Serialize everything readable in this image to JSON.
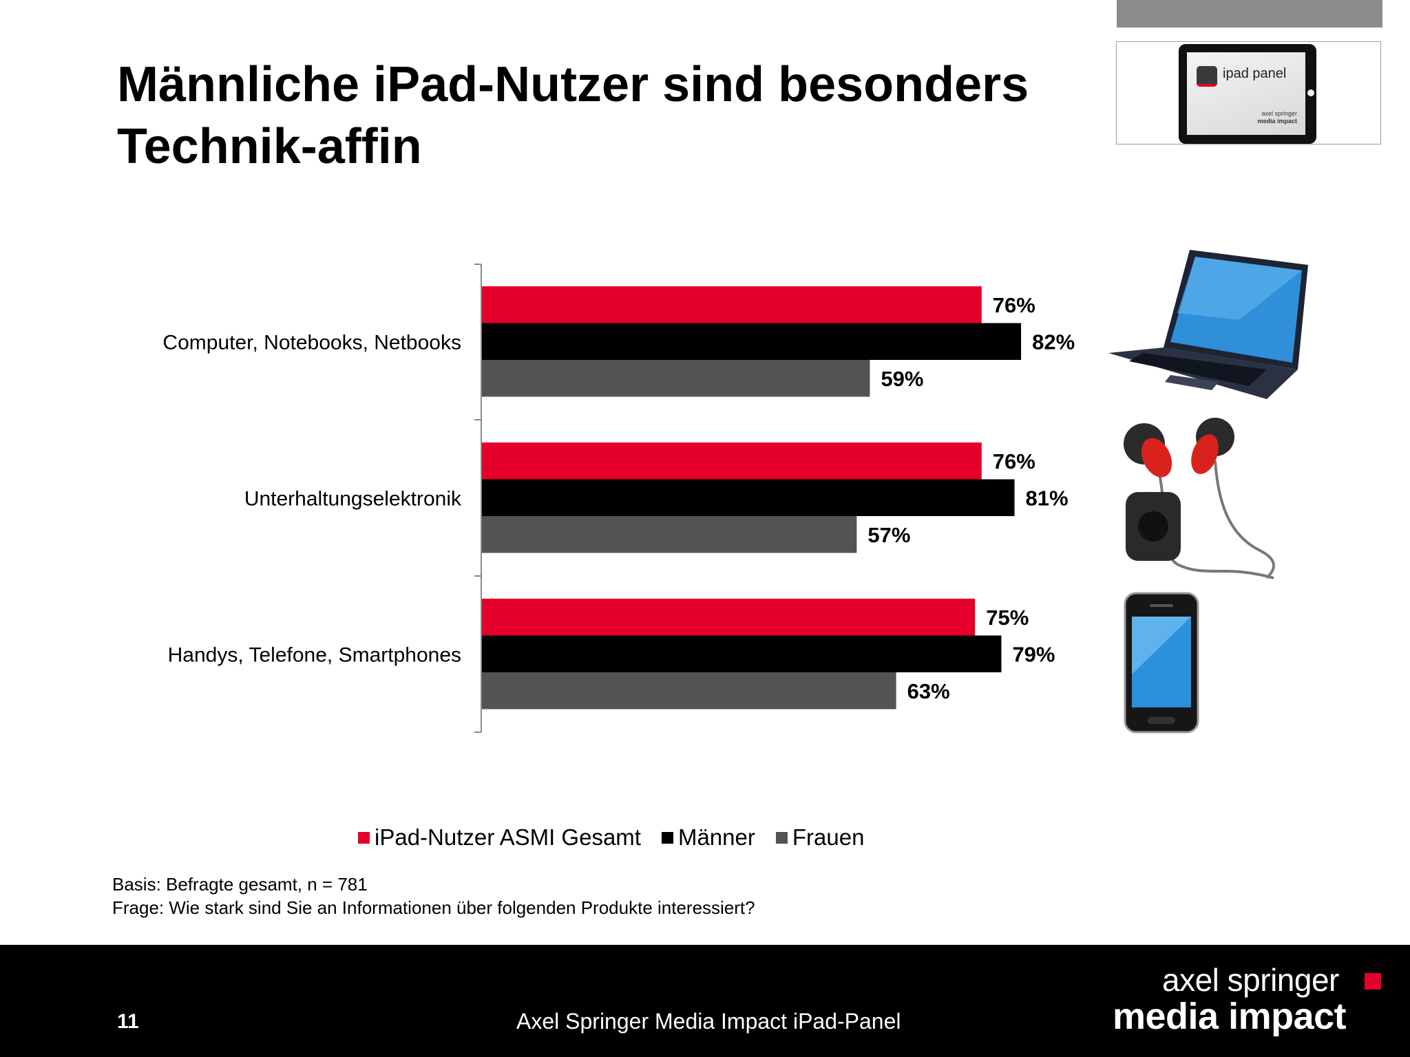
{
  "title": "Männliche iPad-Nutzer sind besonders Technik-affin",
  "logo": {
    "label": "ipad panel",
    "brand_top": "axel springer",
    "brand_bottom": "media impact"
  },
  "chart_data": {
    "type": "bar",
    "orientation": "horizontal",
    "categories": [
      "Computer, Notebooks, Netbooks",
      "Unterhaltungselektronik",
      "Handys, Telefone, Smartphones"
    ],
    "series": [
      {
        "name": "iPad-Nutzer ASMI Gesamt",
        "color": "#e4002b",
        "values": [
          76,
          76,
          75
        ]
      },
      {
        "name": "Männer",
        "color": "#000000",
        "values": [
          82,
          81,
          79
        ]
      },
      {
        "name": "Frauen",
        "color": "#545254",
        "values": [
          59,
          57,
          63
        ]
      }
    ],
    "value_suffix": "%",
    "xlim": [
      0,
      100
    ],
    "grid": false,
    "legend_position": "bottom"
  },
  "footnote": {
    "line1": "Basis: Befragte gesamt, n = 781",
    "line2": "Frage: Wie stark sind Sie an Informationen über folgenden Produkte interessiert?"
  },
  "footer": {
    "page_number": "11",
    "text": "Axel Springer Media Impact iPad-Panel",
    "brand_line1": "axel springer",
    "brand_line2": "media impact"
  }
}
